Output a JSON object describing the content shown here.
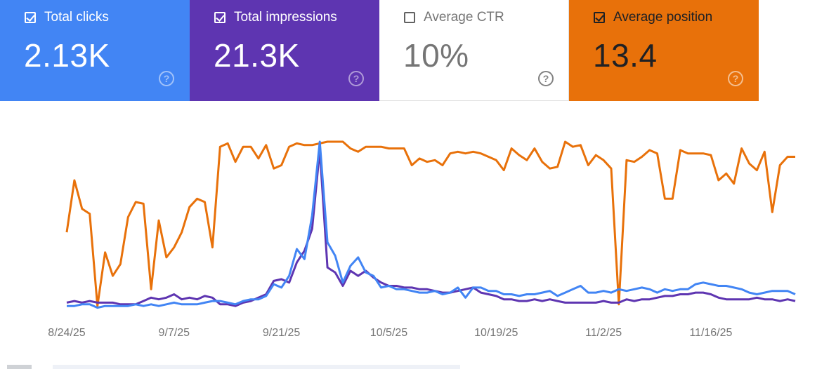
{
  "cards": [
    {
      "label": "Total clicks",
      "value": "2.13K",
      "checked": true,
      "color": "#4285f4"
    },
    {
      "label": "Total impressions",
      "value": "21.3K",
      "checked": true,
      "color": "#5e35b1"
    },
    {
      "label": "Average CTR",
      "value": "10%",
      "checked": false,
      "color": "#ffffff"
    },
    {
      "label": "Average position",
      "value": "13.4",
      "checked": true,
      "color": "#e8710a"
    }
  ],
  "help_glyph": "?",
  "chart_data": {
    "type": "line",
    "title": "",
    "xlabel": "",
    "ylabel": "",
    "grid": false,
    "x_tick_labels": [
      "8/24/25",
      "9/7/25",
      "9/21/25",
      "10/5/25",
      "10/19/25",
      "11/2/25",
      "11/16/25"
    ],
    "x_start": "8/24/25",
    "x_end": "11/24/25",
    "ylim": [
      0,
      100
    ],
    "y_note": "relative scale; position axis inverted (higher line = better position)",
    "series": [
      {
        "name": "Average position",
        "color": "#e8710a",
        "values": [
          46,
          77,
          60,
          57,
          2,
          34,
          20,
          27,
          55,
          64,
          63,
          12,
          53,
          31,
          37,
          46,
          61,
          66,
          64,
          37,
          97,
          99,
          88,
          97,
          97,
          90,
          98,
          84,
          86,
          97,
          99,
          98,
          98,
          99,
          100,
          100,
          100,
          96,
          94,
          97,
          97,
          97,
          96,
          96,
          96,
          86,
          90,
          88,
          89,
          86,
          93,
          94,
          93,
          94,
          93,
          91,
          89,
          83,
          96,
          92,
          89,
          96,
          88,
          84,
          85,
          100,
          97,
          98,
          86,
          92,
          89,
          84,
          3,
          89,
          88,
          91,
          95,
          93,
          66,
          66,
          95,
          93,
          93,
          93,
          92,
          77,
          81,
          75,
          96,
          87,
          83,
          94,
          58,
          86,
          91,
          91
        ],
        "marker": "none"
      },
      {
        "name": "Total impressions",
        "color": "#5e35b1",
        "values": [
          4,
          5,
          4,
          5,
          4,
          4,
          4,
          3,
          3,
          3,
          5,
          7,
          6,
          7,
          9,
          6,
          7,
          6,
          8,
          7,
          3,
          3,
          2,
          4,
          5,
          7,
          9,
          17,
          18,
          16,
          28,
          35,
          48,
          95,
          25,
          22,
          14,
          23,
          20,
          23,
          19,
          16,
          14,
          14,
          13,
          13,
          12,
          12,
          11,
          10,
          10,
          11,
          12,
          13,
          10,
          9,
          8,
          6,
          6,
          5,
          5,
          6,
          5,
          6,
          5,
          4,
          4,
          4,
          4,
          4,
          5,
          4,
          4,
          6,
          5,
          6,
          6,
          7,
          8,
          8,
          9,
          9,
          10,
          10,
          9,
          7,
          6,
          6,
          6,
          6,
          7,
          6,
          6,
          5,
          6,
          5
        ],
        "marker": "none"
      },
      {
        "name": "Total clicks",
        "color": "#4285f4",
        "values": [
          2,
          2,
          3,
          3,
          1,
          2,
          2,
          2,
          2,
          3,
          2,
          3,
          2,
          3,
          4,
          3,
          3,
          3,
          4,
          5,
          5,
          4,
          3,
          5,
          6,
          6,
          8,
          15,
          13,
          20,
          36,
          30,
          56,
          100,
          40,
          32,
          16,
          26,
          31,
          22,
          20,
          13,
          14,
          12,
          12,
          11,
          10,
          10,
          11,
          9,
          10,
          13,
          7,
          13,
          13,
          11,
          11,
          9,
          9,
          8,
          9,
          9,
          10,
          11,
          8,
          10,
          12,
          14,
          10,
          10,
          11,
          10,
          12,
          11,
          12,
          13,
          12,
          10,
          12,
          11,
          12,
          12,
          15,
          16,
          15,
          14,
          14,
          13,
          12,
          10,
          9,
          10,
          11,
          11,
          11,
          9
        ],
        "marker": "none"
      }
    ]
  }
}
